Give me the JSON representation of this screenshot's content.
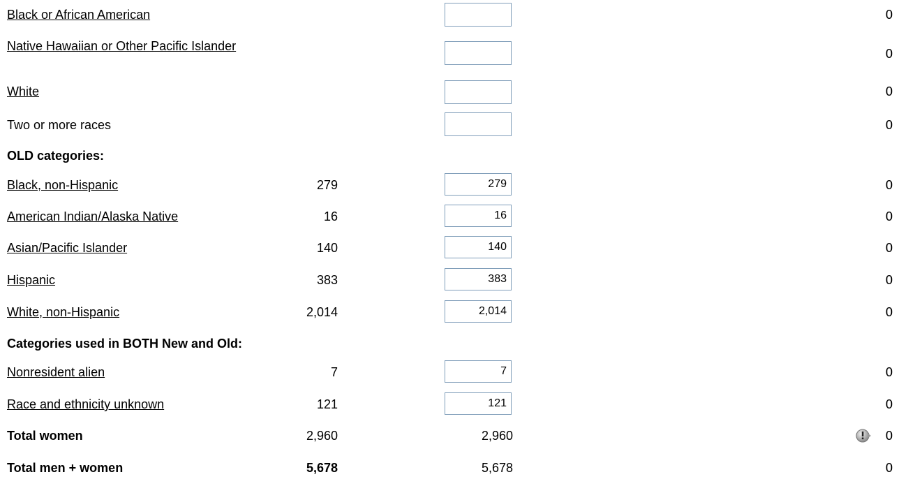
{
  "rows": [
    {
      "label": "Black or African American",
      "difference": "0"
    },
    {
      "label": "Native Hawaiian or Other Pacific Islander",
      "difference": "0"
    },
    {
      "label": "White",
      "difference": "0"
    },
    {
      "label": "Two or more races",
      "difference": "0"
    },
    {
      "label": "OLD categories:"
    },
    {
      "label": "Black, non-Hispanic",
      "prior": "279",
      "current": "279",
      "difference": "0"
    },
    {
      "label": "American Indian/Alaska Native",
      "prior": "16",
      "current": "16",
      "difference": "0"
    },
    {
      "label": "Asian/Pacific Islander",
      "prior": "140",
      "current": "140",
      "difference": "0"
    },
    {
      "label": "Hispanic",
      "prior": "383",
      "current": "383",
      "difference": "0"
    },
    {
      "label": "White, non-Hispanic",
      "prior": "2,014",
      "current": "2,014",
      "difference": "0"
    },
    {
      "label": "Categories used in BOTH New and Old:"
    },
    {
      "label": "Nonresident alien",
      "prior": "7",
      "current": "7",
      "difference": "0"
    },
    {
      "label": "Race and ethnicity unknown",
      "prior": "121",
      "current": "121",
      "difference": "0"
    },
    {
      "label": "Total women",
      "prior": "2,960",
      "current": "2,960",
      "difference": "0"
    },
    {
      "label": "Total men + women",
      "prior": "5,678",
      "current": "5,678",
      "difference": "0"
    }
  ]
}
